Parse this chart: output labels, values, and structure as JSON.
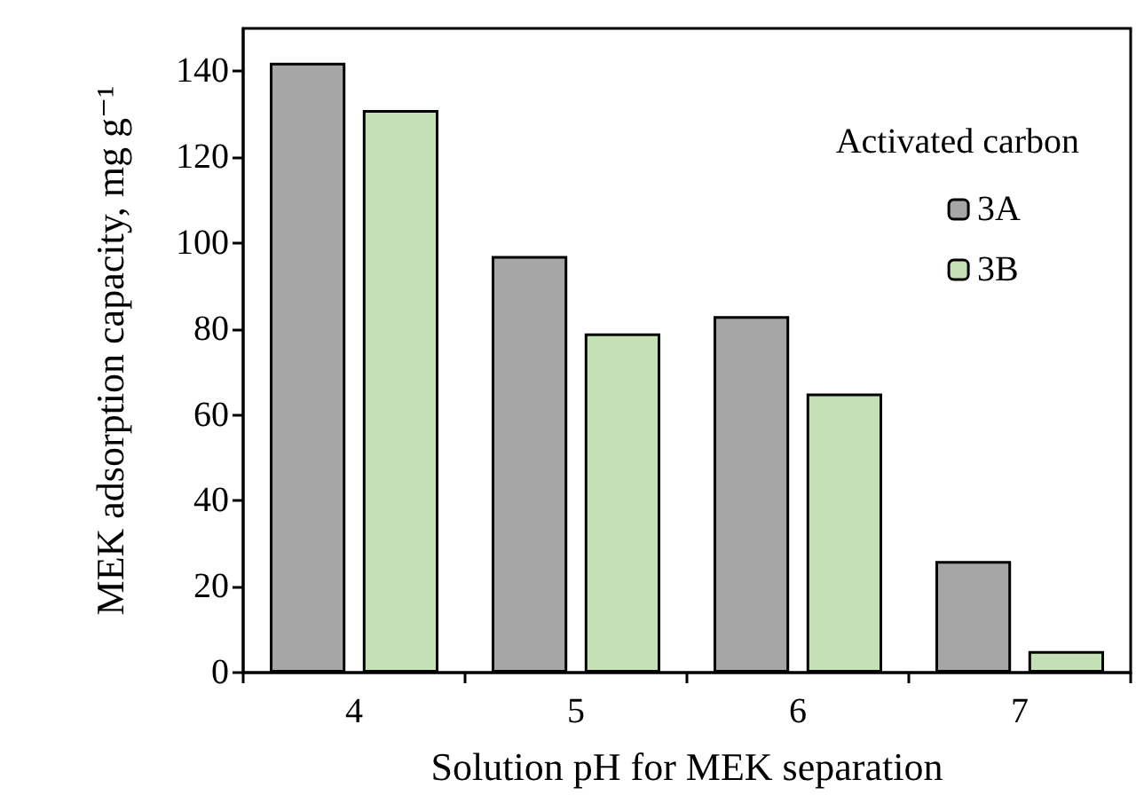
{
  "chart_data": {
    "type": "bar",
    "xlabel": "Solution pH for MEK separation",
    "ylabel": "MEK adsorption capacity, mg g⁻¹",
    "legend_title": "Activated carbon",
    "categories": [
      "4",
      "5",
      "6",
      "7"
    ],
    "series": [
      {
        "name": "3A",
        "color": "#a6a6a6",
        "values": [
          142,
          97,
          83,
          26
        ]
      },
      {
        "name": "3B",
        "color": "#c5e0b4",
        "values": [
          131,
          79,
          65,
          5
        ]
      }
    ],
    "ylim": [
      0,
      150
    ],
    "yticks": [
      0,
      20,
      40,
      60,
      80,
      100,
      120,
      140
    ],
    "grid": false,
    "legend": "top right"
  }
}
